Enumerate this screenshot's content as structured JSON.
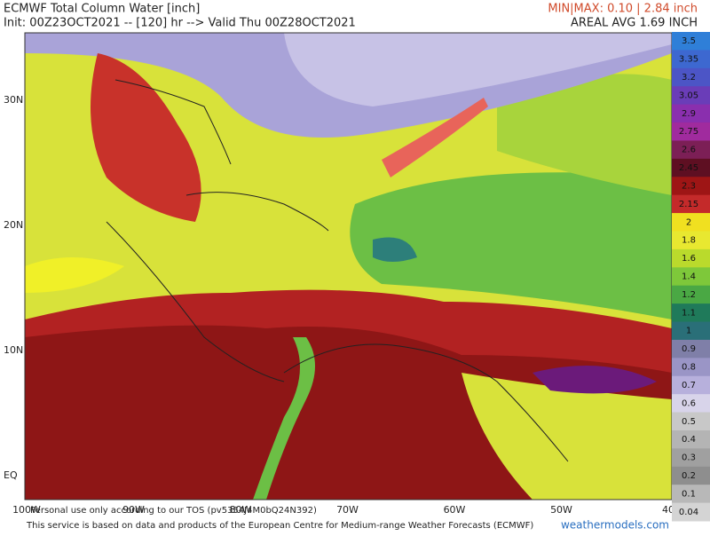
{
  "header": {
    "title": "ECMWF Total Column Water [inch]",
    "init": "Init: 00Z23OCT2021 -- [120] hr --> Valid Thu 00Z28OCT2021",
    "minmax": "MIN|MAX: 0.10 | 2.84 inch",
    "areal_avg": "AREAL AVG 1.69 INCH"
  },
  "map": {
    "lat_labels": [
      "30N",
      "20N",
      "10N",
      "EQ"
    ],
    "lon_labels": [
      "100W",
      "90W",
      "80W",
      "70W",
      "60W",
      "50W",
      "40"
    ]
  },
  "colorbar": {
    "levels": [
      3.5,
      3.35,
      3.2,
      3.05,
      2.9,
      2.75,
      2.6,
      2.45,
      2.3,
      2.15,
      2,
      1.8,
      1.6,
      1.4,
      1.2,
      1.1,
      1,
      0.9,
      0.8,
      0.7,
      0.6,
      0.5,
      0.4,
      0.3,
      0.2,
      0.1,
      0.04
    ],
    "colors": [
      "#2f7fd8",
      "#3d68d0",
      "#4c55c6",
      "#6a3db8",
      "#8a2fae",
      "#a02b9e",
      "#7c1f56",
      "#5e0f22",
      "#9e1515",
      "#c42a2a",
      "#f0e020",
      "#e8e830",
      "#bada2c",
      "#7ec83a",
      "#4aa844",
      "#1f7a5a",
      "#2a6f78",
      "#7f7fa8",
      "#9a95c6",
      "#b7b0dc",
      "#d8d4ea",
      "#c8c8c8",
      "#b4b4b4",
      "#a0a0a0",
      "#8e8e8e",
      "#b8b8b8",
      "#d4d4d4"
    ]
  },
  "footer": {
    "tos": "Personal use only according to our TOS (pv5354J4M0bQ24N392)",
    "credit": "This service is based on data and products of the European Centre for Medium-range Weather Forecasts (ECMWF)",
    "site": "weathermodels.com"
  }
}
